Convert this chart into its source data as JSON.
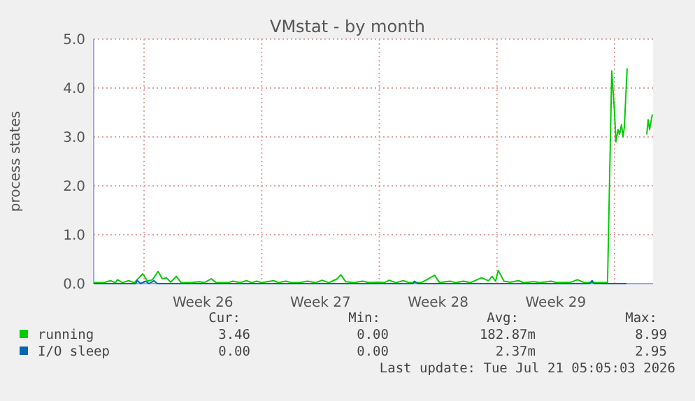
{
  "chart_data": {
    "type": "line",
    "title": "VMstat - by month",
    "ylabel": "process states",
    "xlim": [
      "2026-06-19T00:00",
      "2026-07-22T07:00"
    ],
    "xticks": [
      {
        "value": "2026-06-22",
        "label": null
      },
      {
        "value": "2026-06-25T12:00",
        "label": "Week 26"
      },
      {
        "value": "2026-06-29",
        "label": null
      },
      {
        "value": "2026-07-02T12:00",
        "label": "Week 27"
      },
      {
        "value": "2026-07-06",
        "label": null
      },
      {
        "value": "2026-07-09T12:00",
        "label": "Week 28"
      },
      {
        "value": "2026-07-13",
        "label": null
      },
      {
        "value": "2026-07-16T12:00",
        "label": "Week 29"
      },
      {
        "value": "2026-07-20",
        "label": null
      }
    ],
    "ylim": [
      0,
      5
    ],
    "yticks": [
      {
        "value": 0,
        "label": "0.0"
      },
      {
        "value": 1,
        "label": "1.0"
      },
      {
        "value": 2,
        "label": "2.0"
      },
      {
        "value": 3,
        "label": "3.0"
      },
      {
        "value": 4,
        "label": "4.0"
      },
      {
        "value": 5,
        "label": "5.0"
      }
    ],
    "grid": true,
    "legend": "bottom left",
    "series": [
      {
        "name": "running",
        "color": "#00cc00",
        "x": [
          "2026-06-19T00:00",
          "2026-06-19T14:00",
          "2026-06-20T00:00",
          "2026-06-20T07:00",
          "2026-06-20T10:00",
          "2026-06-20T17:00",
          "2026-06-21T02:00",
          "2026-06-21T10:00",
          "2026-06-21T22:00",
          "2026-06-22T05:00",
          "2026-06-22T12:00",
          "2026-06-22T20:00",
          "2026-06-23T02:00",
          "2026-06-23T08:00",
          "2026-06-23T14:00",
          "2026-06-23T22:00",
          "2026-06-24T05:00",
          "2026-06-24T19:00",
          "2026-06-25T07:00",
          "2026-06-25T14:00",
          "2026-06-26T00:00",
          "2026-06-26T07:00",
          "2026-06-27T00:00",
          "2026-06-27T07:00",
          "2026-06-27T17:00",
          "2026-06-28T02:00",
          "2026-06-28T10:00",
          "2026-06-28T17:00",
          "2026-06-29T00:00",
          "2026-06-29T17:00",
          "2026-06-30T00:00",
          "2026-06-30T10:00",
          "2026-06-30T19:00",
          "2026-07-01T07:00",
          "2026-07-01T17:00",
          "2026-07-02T05:00",
          "2026-07-02T14:00",
          "2026-07-03T00:00",
          "2026-07-03T12:00",
          "2026-07-03T17:00",
          "2026-07-04T00:00",
          "2026-07-04T12:00",
          "2026-07-05T00:00",
          "2026-07-05T10:00",
          "2026-07-06T00:00",
          "2026-07-06T07:00",
          "2026-07-06T14:00",
          "2026-07-07T00:00",
          "2026-07-07T10:00",
          "2026-07-07T19:00",
          "2026-07-08T12:00",
          "2026-07-09T07:00",
          "2026-07-09T14:00",
          "2026-07-10T05:00",
          "2026-07-10T14:00",
          "2026-07-11T00:00",
          "2026-07-11T10:00",
          "2026-07-12T02:00",
          "2026-07-12T12:00",
          "2026-07-12T17:00",
          "2026-07-12T22:00",
          "2026-07-13T02:00",
          "2026-07-13T10:00",
          "2026-07-13T19:00",
          "2026-07-14T07:00",
          "2026-07-14T14:00",
          "2026-07-15T05:00",
          "2026-07-15T14:00",
          "2026-07-16T05:00",
          "2026-07-16T14:00",
          "2026-07-17T10:00",
          "2026-07-17T19:00",
          "2026-07-18T05:00",
          "2026-07-19T02:00",
          "2026-07-19T14:00",
          "2026-07-19T20:00",
          "2026-07-20T00:00",
          "2026-07-20T02:00",
          "2026-07-20T05:00",
          "2026-07-20T07:00",
          "2026-07-20T10:00",
          "2026-07-20T12:00",
          "2026-07-20T14:00",
          "2026-07-20T18:00",
          "2026-07-20T19:00",
          "2026-07-21T22:00",
          "2026-07-22T00:00",
          "2026-07-22T02:00",
          "2026-07-22T06:00"
        ],
        "values": [
          0.02,
          0.02,
          0.06,
          0.02,
          0.08,
          0.02,
          0.06,
          0.02,
          0.2,
          0.05,
          0.08,
          0.25,
          0.1,
          0.12,
          0.03,
          0.15,
          0.02,
          0.02,
          0.04,
          0.02,
          0.1,
          0.02,
          0.02,
          0.05,
          0.02,
          0.06,
          0.02,
          0.05,
          0.02,
          0.06,
          0.02,
          0.05,
          0.02,
          0.02,
          0.05,
          0.02,
          0.07,
          0.02,
          0.1,
          0.18,
          0.04,
          0.02,
          0.05,
          0.02,
          0.03,
          0.02,
          0.07,
          0.02,
          0.06,
          0.02,
          0.02,
          0.17,
          0.02,
          0.05,
          0.02,
          0.05,
          0.02,
          0.12,
          0.06,
          0.15,
          0.05,
          0.27,
          0.05,
          0.03,
          0.06,
          0.02,
          0.04,
          0.02,
          0.05,
          0.02,
          0.03,
          0.08,
          0.02,
          0.02,
          0.02,
          4.35,
          3.5,
          2.9,
          3.15,
          3.05,
          3.25,
          3.0,
          3.2,
          4.4,
          null,
          3.05,
          3.35,
          3.15,
          3.46
        ]
      },
      {
        "name": "I/O sleep",
        "color": "#0066b3",
        "x": [
          "2026-06-19T00:00",
          "2026-06-21T12:00",
          "2026-06-21T14:00",
          "2026-06-21T19:00",
          "2026-06-22T02:00",
          "2026-06-22T07:00",
          "2026-06-22T14:00",
          "2026-06-22T19:00",
          "2026-07-08T00:00",
          "2026-07-08T02:00",
          "2026-07-08T07:00",
          "2026-07-18T12:00",
          "2026-07-18T16:00",
          "2026-07-18T19:00",
          "2026-07-20T17:00"
        ],
        "values": [
          0,
          0,
          0.07,
          0,
          0.05,
          0,
          0.06,
          0,
          0,
          0.05,
          0,
          0,
          0.06,
          0,
          0
        ]
      }
    ],
    "annotations": [
      "Cur:",
      "Min:",
      "Avg:",
      "Max:",
      "3.46",
      "0.00",
      "182.87m",
      "8.99",
      "0.00",
      "0.00",
      "2.37m",
      "2.95",
      "Last update: Tue Jul 21 05:05:03 2026"
    ]
  }
}
